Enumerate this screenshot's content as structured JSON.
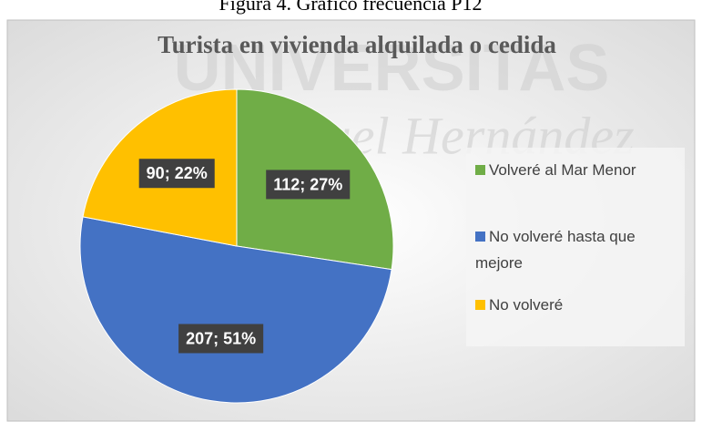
{
  "caption": "Figura 4. Gráfico frecuencia P12",
  "watermark": [
    "UNIVERSITAS",
    "Miguel Hernández"
  ],
  "chart_data": {
    "type": "pie",
    "title": "Turista en vivienda alquilada o cedida",
    "categories": [
      "Volveré al Mar Menor",
      "No volveré hasta que mejore",
      "No volveré"
    ],
    "values": [
      112,
      207,
      90
    ],
    "value_labels": [
      "112; 27%",
      "207; 51%",
      "90; 22%"
    ],
    "colors": [
      "#70ad47",
      "#4472c4",
      "#ffc000"
    ],
    "legend": "right"
  }
}
